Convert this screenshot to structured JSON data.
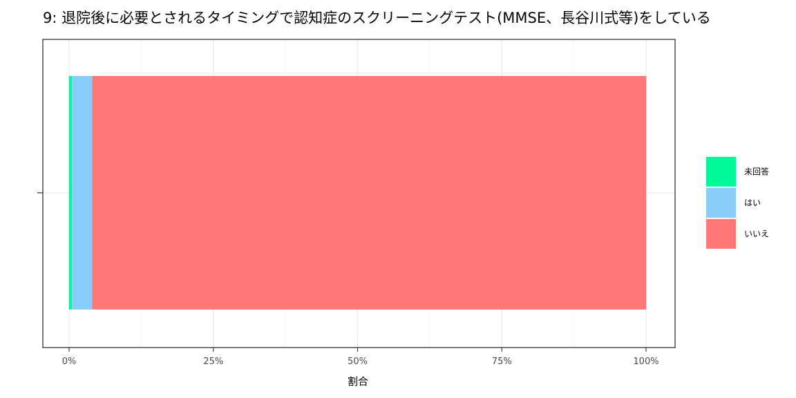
{
  "chart_data": {
    "type": "bar",
    "orientation": "horizontal",
    "stacked": true,
    "title": "9: 退院後に必要とされるタイミングで認知症のスクリーニングテスト(MMSE、長谷川式等)をしている",
    "xlabel": "割合",
    "ylabel": "",
    "xlim": [
      0,
      1
    ],
    "x_ticks": [
      0,
      0.25,
      0.5,
      0.75,
      1
    ],
    "x_tick_labels": [
      "0%",
      "25%",
      "50%",
      "75%",
      "100%"
    ],
    "grid": true,
    "legend_position": "right",
    "series": [
      {
        "name": "未回答",
        "values": [
          0.005
        ],
        "color": "#00FA9A"
      },
      {
        "name": "はい",
        "values": [
          0.035
        ],
        "color": "#87CEFA"
      },
      {
        "name": "いいえ",
        "values": [
          0.96
        ],
        "color": "#FF7777"
      }
    ]
  }
}
